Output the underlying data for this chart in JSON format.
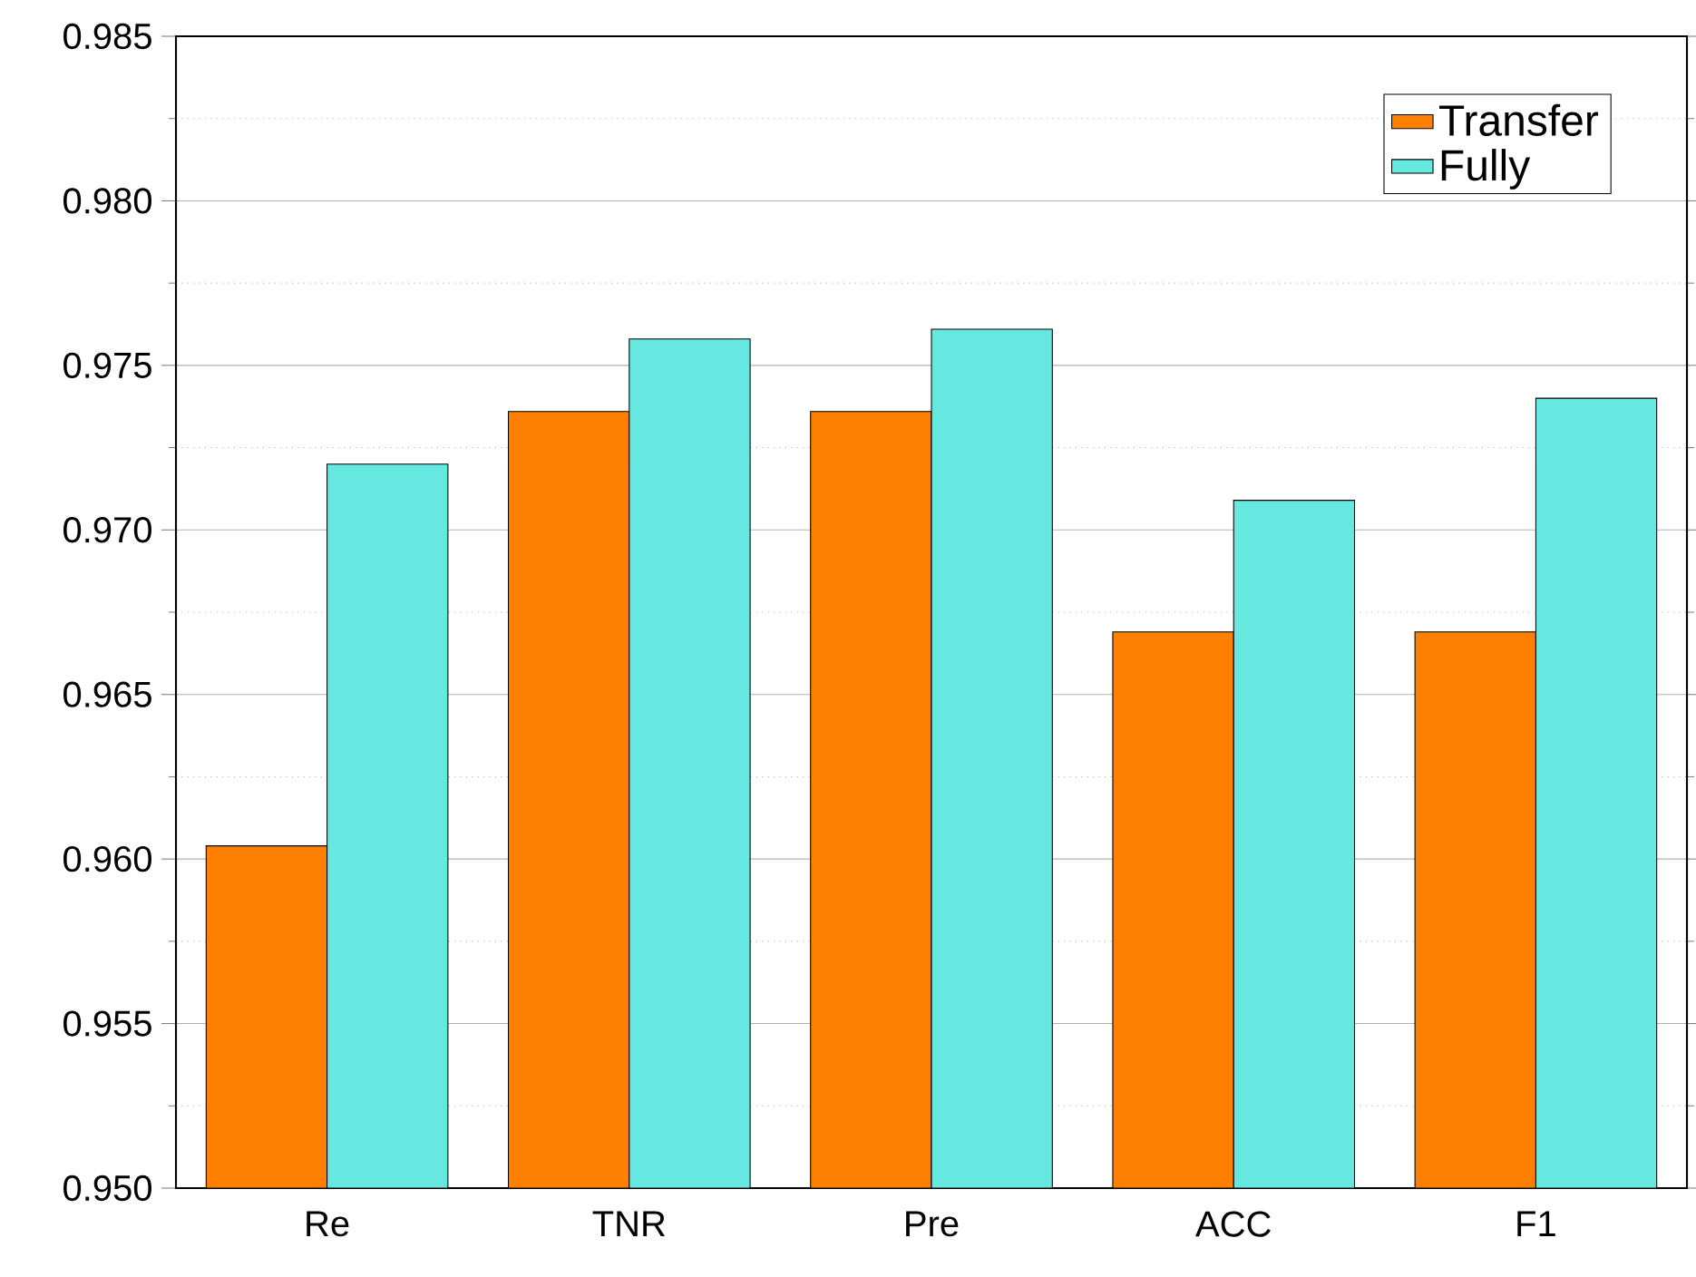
{
  "chart_data": {
    "type": "bar",
    "categories": [
      "Re",
      "TNR",
      "Pre",
      "ACC",
      "F1"
    ],
    "series": [
      {
        "name": "Transfer",
        "color": "#ff8000",
        "values": [
          0.9604,
          0.9736,
          0.9736,
          0.9669,
          0.9669
        ]
      },
      {
        "name": "Fully",
        "color": "#66e8e0",
        "values": [
          0.972,
          0.9758,
          0.9761,
          0.9709,
          0.974
        ]
      }
    ],
    "ylim": [
      0.95,
      0.985
    ],
    "yticks": [
      {
        "value": 0.95,
        "label": "0.950"
      },
      {
        "value": 0.955,
        "label": "0.955"
      },
      {
        "value": 0.96,
        "label": "0.960"
      },
      {
        "value": 0.965,
        "label": "0.965"
      },
      {
        "value": 0.97,
        "label": "0.970"
      },
      {
        "value": 0.975,
        "label": "0.975"
      },
      {
        "value": 0.98,
        "label": "0.980"
      },
      {
        "value": 0.985,
        "label": "0.985"
      }
    ],
    "grid": "y",
    "legend": "top right"
  }
}
